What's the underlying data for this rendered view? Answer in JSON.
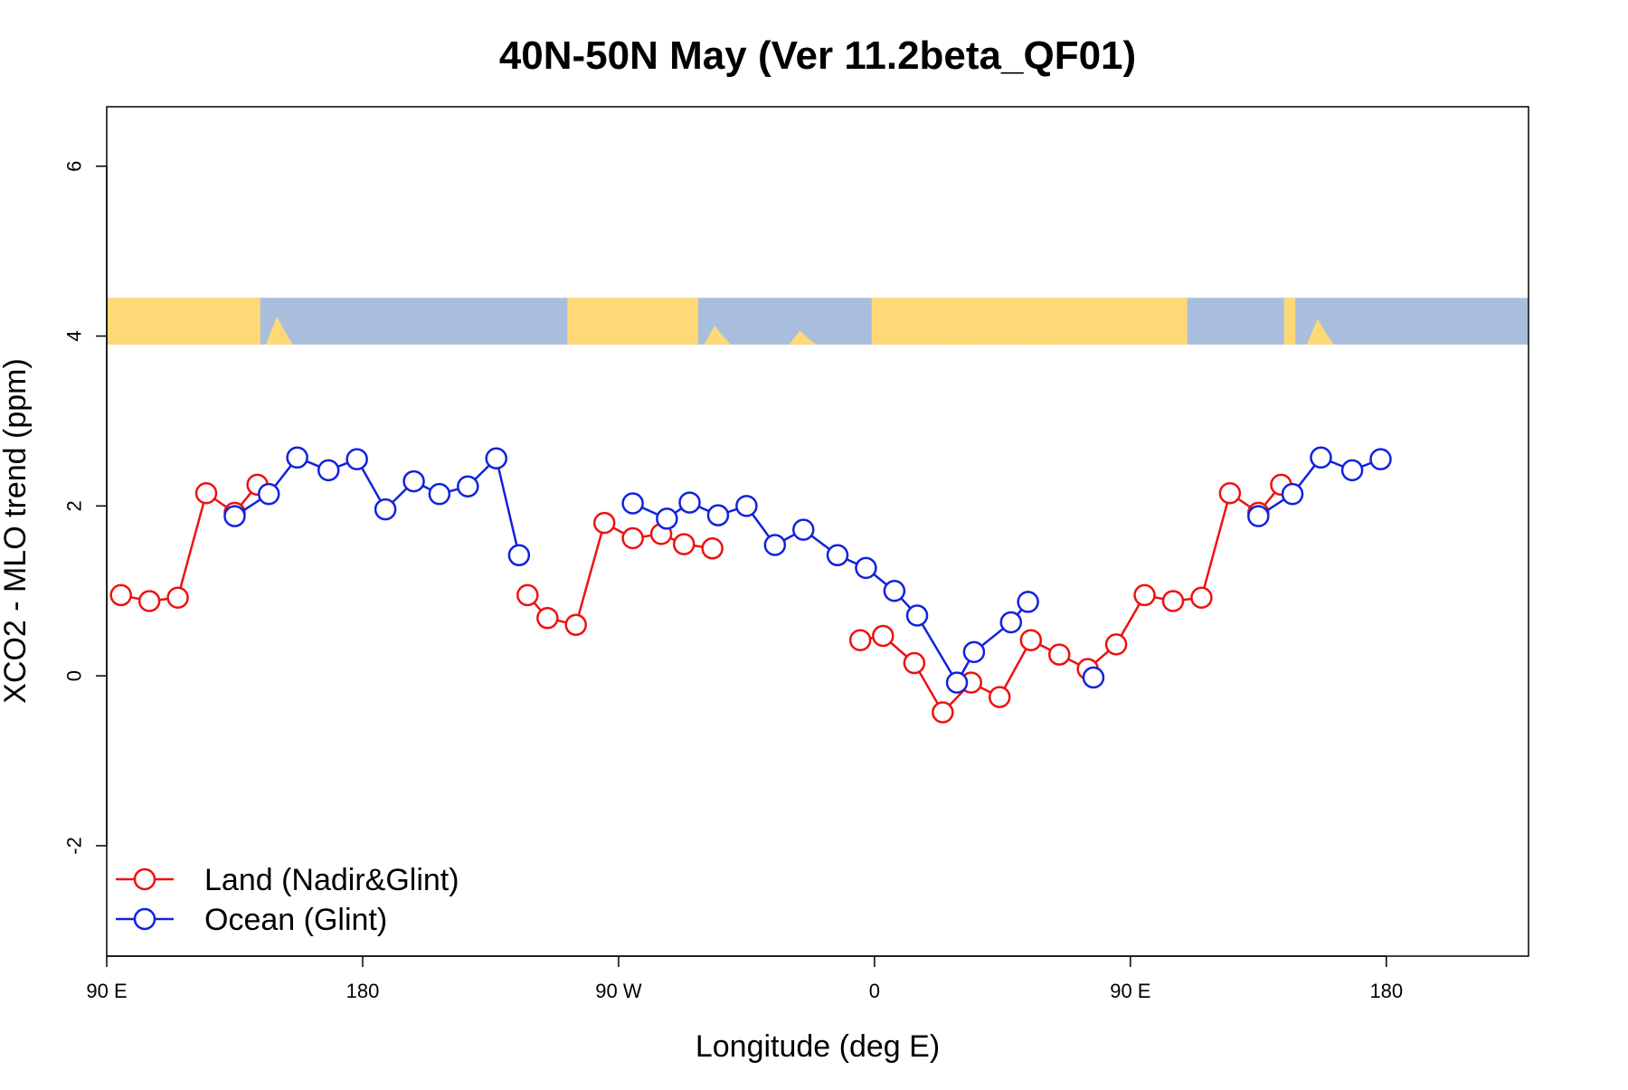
{
  "chart_data": {
    "type": "line",
    "title": "40N-50N May (Ver 11.2beta_QF01)",
    "xlabel": "Longitude (deg E)",
    "ylabel": "XCO2 - MLO trend (ppm)",
    "xlim": [
      90,
      590
    ],
    "ylim": [
      -3.3,
      6.7
    ],
    "x_ticks": [
      {
        "value": 90,
        "label": "90 E"
      },
      {
        "value": 180,
        "label": "180"
      },
      {
        "value": 270,
        "label": "90 W"
      },
      {
        "value": 360,
        "label": "0"
      },
      {
        "value": 450,
        "label": "90 E"
      },
      {
        "value": 540,
        "label": "180"
      }
    ],
    "y_ticks": [
      {
        "value": -2,
        "label": "-2"
      },
      {
        "value": 0,
        "label": "0"
      },
      {
        "value": 2,
        "label": "2"
      },
      {
        "value": 4,
        "label": "4"
      },
      {
        "value": 6,
        "label": "6"
      }
    ],
    "map_strip": {
      "y_range": [
        3.9,
        4.45
      ],
      "land_color": "#FFD978",
      "ocean_color": "#A9BEDC"
    },
    "legend": {
      "position": "bottom-left"
    },
    "series": [
      {
        "name": "Land (Nadir&Glint)",
        "color": "#EE1111",
        "segments": [
          [
            [
              95,
              0.95
            ],
            [
              105,
              0.88
            ],
            [
              115,
              0.92
            ],
            [
              125,
              2.15
            ],
            [
              135,
              1.92
            ],
            [
              143,
              2.25
            ]
          ],
          [
            [
              238,
              0.95
            ],
            [
              245,
              0.68
            ],
            [
              255,
              0.6
            ],
            [
              265,
              1.8
            ],
            [
              275,
              1.62
            ],
            [
              285,
              1.67
            ],
            [
              293,
              1.55
            ],
            [
              303,
              1.5
            ]
          ],
          [
            [
              355,
              0.42
            ],
            [
              363,
              0.47
            ],
            [
              374,
              0.15
            ],
            [
              384,
              -0.43
            ],
            [
              394,
              -0.08
            ],
            [
              404,
              -0.25
            ],
            [
              415,
              0.42
            ],
            [
              425,
              0.25
            ],
            [
              435,
              0.08
            ],
            [
              445,
              0.37
            ],
            [
              455,
              0.95
            ],
            [
              465,
              0.88
            ],
            [
              475,
              0.92
            ],
            [
              485,
              2.15
            ],
            [
              495,
              1.92
            ],
            [
              503,
              2.25
            ]
          ]
        ]
      },
      {
        "name": "Ocean (Glint)",
        "color": "#1122DD",
        "segments": [
          [
            [
              135,
              1.88
            ],
            [
              147,
              2.14
            ],
            [
              157,
              2.57
            ],
            [
              168,
              2.42
            ],
            [
              178,
              2.55
            ],
            [
              188,
              1.96
            ],
            [
              198,
              2.29
            ],
            [
              207,
              2.14
            ],
            [
              217,
              2.23
            ],
            [
              227,
              2.56
            ],
            [
              235,
              1.42
            ]
          ],
          [
            [
              275,
              2.03
            ],
            [
              287,
              1.85
            ],
            [
              295,
              2.04
            ],
            [
              305,
              1.89
            ],
            [
              315,
              2.0
            ],
            [
              325,
              1.54
            ],
            [
              335,
              1.72
            ],
            [
              347,
              1.42
            ],
            [
              357,
              1.27
            ],
            [
              367,
              1.0
            ],
            [
              375,
              0.71
            ],
            [
              389,
              -0.08
            ],
            [
              395,
              0.28
            ],
            [
              408,
              0.63
            ],
            [
              414,
              0.87
            ]
          ],
          [
            [
              437,
              -0.02
            ]
          ],
          [
            [
              495,
              1.88
            ],
            [
              507,
              2.14
            ],
            [
              517,
              2.57
            ],
            [
              528,
              2.42
            ],
            [
              538,
              2.55
            ]
          ]
        ]
      }
    ]
  }
}
